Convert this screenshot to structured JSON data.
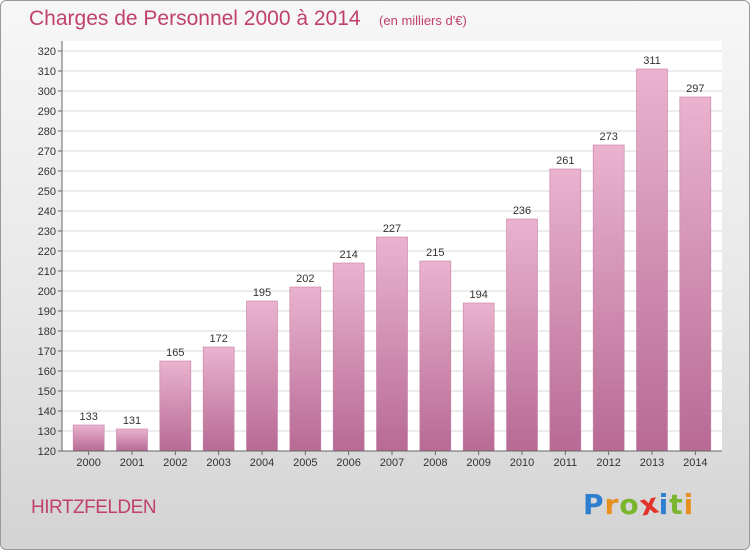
{
  "chart_data": {
    "type": "bar",
    "title": "Charges de Personnel 2000 à 2014",
    "subtitle": "(en milliers d'€)",
    "categories": [
      "2000",
      "2001",
      "2002",
      "2003",
      "2004",
      "2005",
      "2006",
      "2007",
      "2008",
      "2009",
      "2010",
      "2011",
      "2012",
      "2013",
      "2014"
    ],
    "values": [
      133,
      131,
      165,
      172,
      195,
      202,
      214,
      227,
      215,
      194,
      236,
      261,
      273,
      311,
      297
    ],
    "ylim": [
      120,
      320
    ],
    "yticks": [
      120,
      130,
      140,
      150,
      160,
      170,
      180,
      190,
      200,
      210,
      220,
      230,
      240,
      250,
      260,
      270,
      280,
      290,
      300,
      310,
      320
    ],
    "grid": true,
    "bar_color": "#e4a6c6"
  },
  "footer": {
    "commune": "HIRTZFELDEN",
    "logo_letters": [
      "P",
      "r",
      "o",
      "x",
      "i",
      "t",
      "i"
    ],
    "logo_colors": [
      "#2e7fd0",
      "#e8901f",
      "#7ab52e",
      "#e2332b",
      "#2e7fd0",
      "#7ab52e",
      "#e8901f"
    ]
  }
}
